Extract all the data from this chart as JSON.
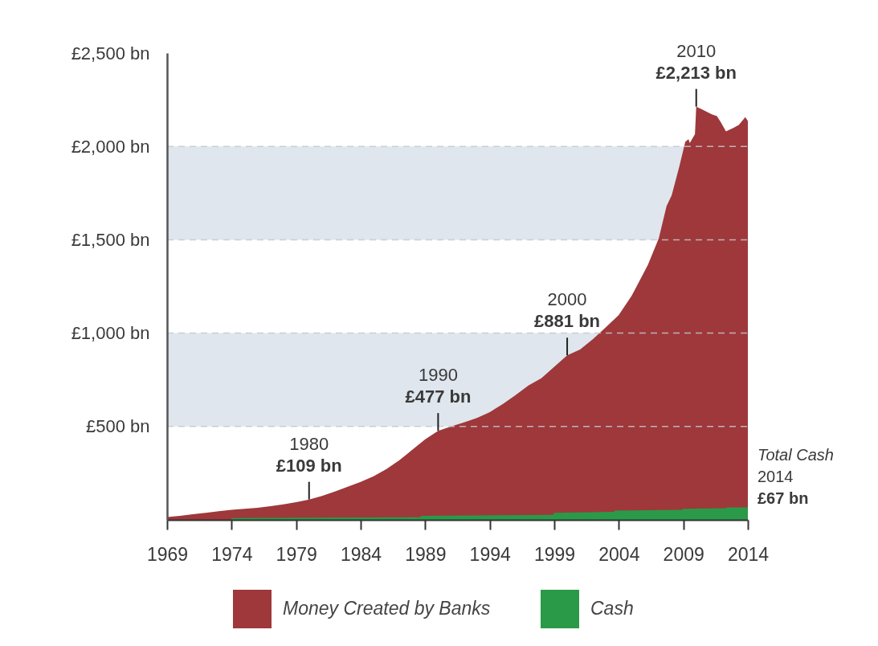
{
  "chart_data": {
    "type": "area",
    "series": [
      {
        "name": "Money Created by Banks",
        "color": "#9e383b",
        "x": [
          1969,
          1970,
          1971,
          1972,
          1973,
          1974,
          1975,
          1976,
          1977,
          1978,
          1979,
          1980,
          1981,
          1982,
          1983,
          1984,
          1985,
          1986,
          1987,
          1988,
          1989,
          1990,
          1991,
          1992,
          1993,
          1994,
          1995,
          1996,
          1997,
          1998,
          1999,
          2000,
          2001,
          2002,
          2003,
          2004,
          2005,
          2005.6,
          2006.25,
          2007.1,
          2007.7,
          2008.1,
          2008.7,
          2009.15,
          2009.4,
          2009.5,
          2009.9,
          2010,
          2010.4,
          2011.2,
          2011.6,
          2011.9,
          2012.3,
          2012.9,
          2013.3,
          2013.8,
          2014
        ],
        "values": [
          15,
          22,
          30,
          38,
          46,
          54,
          59,
          65,
          73,
          83,
          95,
          109,
          128,
          152,
          178,
          203,
          233,
          272,
          319,
          375,
          431,
          477,
          500,
          522,
          545,
          577,
          620,
          668,
          720,
          758,
          820,
          881,
          912,
          968,
          1032,
          1097,
          1200,
          1279,
          1365,
          1508,
          1680,
          1738,
          1895,
          2024,
          2039,
          2018,
          2065,
          2213,
          2200,
          2172,
          2162,
          2130,
          2080,
          2100,
          2115,
          2157,
          2136
        ]
      },
      {
        "name": "Cash",
        "color": "#2a9a48",
        "x": [
          1974,
          1988.6,
          1988.7,
          1998.9,
          1999,
          2003.6,
          2003.7,
          2008.9,
          2009,
          2012.3,
          2012.4,
          2014
        ],
        "values": [
          10,
          14,
          21,
          27,
          38,
          43,
          49,
          54,
          59,
          62,
          67,
          67
        ]
      }
    ],
    "xlim": [
      1969,
      2014
    ],
    "xticks": [
      1969,
      1974,
      1979,
      1984,
      1989,
      1994,
      1999,
      2004,
      2009,
      2014
    ],
    "ylim": [
      0,
      2500
    ],
    "yticks": [
      {
        "value": 500,
        "label": "£500 bn"
      },
      {
        "value": 1000,
        "label": "£1,000 bn"
      },
      {
        "value": 1500,
        "label": "£1,500 bn"
      },
      {
        "value": 2000,
        "label": "£2,000 bn"
      },
      {
        "value": 2500,
        "label": "£2,500 bn"
      }
    ],
    "grid": "y",
    "bands": [
      {
        "axis": "y",
        "from": 500,
        "to": 1000,
        "color": "#dfe6ed"
      },
      {
        "axis": "y",
        "from": 1500,
        "to": 2000,
        "color": "#dfe6ed"
      }
    ],
    "annotations": [
      {
        "text": "1980\n£109 bn",
        "x": 1980,
        "y": 109
      },
      {
        "text": "1990\n£477 bn",
        "x": 1990,
        "y": 477
      },
      {
        "text": "2000\n£881 bn",
        "x": 2000,
        "y": 881
      },
      {
        "text": "2010\n£2,213 bn",
        "x": 2010,
        "y": 2213
      },
      {
        "text": "Total Cash\n2014\n£67 bn",
        "x": 2014,
        "y": 67
      }
    ],
    "legend": "bottom"
  }
}
